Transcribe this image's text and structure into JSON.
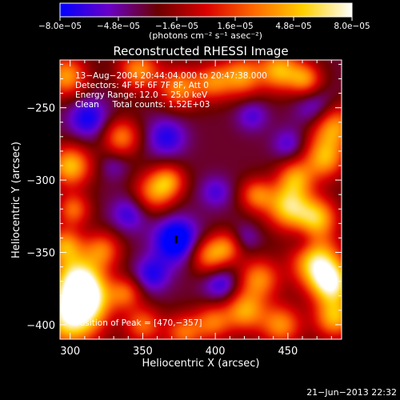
{
  "chart_data": {
    "type": "heatmap",
    "title": "Reconstructed RHESSI Image",
    "xlabel": "Heliocentric X (arcsec)",
    "ylabel": "Heliocentric Y (arcsec)",
    "xlim": [
      293,
      487
    ],
    "ylim": [
      -410,
      -217
    ],
    "x_ticks": [
      300,
      350,
      400,
      450
    ],
    "y_ticks": [
      -250,
      -300,
      -350,
      -400
    ],
    "x_tick_labels": [
      "300",
      "350",
      "400",
      "450"
    ],
    "y_tick_labels": [
      "−250",
      "−300",
      "−350",
      "−400"
    ],
    "colorbar": {
      "range": [
        -8e-05,
        8e-05
      ],
      "ticks": [
        -8e-05,
        -4.8e-05,
        -1.6e-05,
        1.6e-05,
        4.8e-05,
        8e-05
      ],
      "tick_labels": [
        "−8.0e−05",
        "−4.8e−05",
        "−1.6e−05",
        "1.6e−05",
        "4.8e−05",
        "8.0e−05"
      ],
      "units_label": "(photons cm⁻² s⁻¹ asec⁻²)",
      "colors": [
        "#0000ff",
        "#6a00c8",
        "#6b0000",
        "#d90000",
        "#ff6a00",
        "#ffd000",
        "#ffffff"
      ]
    },
    "info_lines": [
      "13−Aug−2004 20:44:04.000 to 20:47:38.000",
      "Detectors: 4F 5F 6F 7F 8F, Att 0",
      "Energy Range: 12.0 − 25.0 keV",
      "Clean     Total counts: 1.52E+03"
    ],
    "peak_label": "Position of Peak = [470,−357]",
    "peak": {
      "x": 470,
      "y": -357
    },
    "marker": {
      "x": 373,
      "y": -341
    },
    "timestamp": "21−Jun−2013 22:32",
    "blobs": [
      {
        "x": 300,
        "y": -395,
        "r": 14,
        "v": 8e-05
      },
      {
        "x": 305,
        "y": -368,
        "r": 12,
        "v": 7.2e-05
      },
      {
        "x": 312,
        "y": -382,
        "r": 12,
        "v": 6e-05
      },
      {
        "x": 296,
        "y": -345,
        "r": 9,
        "v": 5e-05
      },
      {
        "x": 302,
        "y": -320,
        "r": 8,
        "v": 4e-05
      },
      {
        "x": 300,
        "y": -290,
        "r": 10,
        "v": 6.5e-05
      },
      {
        "x": 297,
        "y": -228,
        "r": 10,
        "v": 5.5e-05
      },
      {
        "x": 335,
        "y": -270,
        "r": 9,
        "v": 4.5e-05
      },
      {
        "x": 347,
        "y": -224,
        "r": 10,
        "v": 5e-05
      },
      {
        "x": 375,
        "y": -236,
        "r": 10,
        "v": 4.8e-05
      },
      {
        "x": 398,
        "y": -232,
        "r": 9,
        "v": 4e-05
      },
      {
        "x": 418,
        "y": -228,
        "r": 10,
        "v": 5.2e-05
      },
      {
        "x": 444,
        "y": -224,
        "r": 10,
        "v": 6e-05
      },
      {
        "x": 462,
        "y": -230,
        "r": 8,
        "v": 4.5e-05
      },
      {
        "x": 480,
        "y": -262,
        "r": 11,
        "v": 6.5e-05
      },
      {
        "x": 475,
        "y": -285,
        "r": 10,
        "v": 5.5e-05
      },
      {
        "x": 455,
        "y": -298,
        "r": 9,
        "v": 4.5e-05
      },
      {
        "x": 428,
        "y": -310,
        "r": 8,
        "v": 4e-05
      },
      {
        "x": 450,
        "y": -318,
        "r": 11,
        "v": 7e-05
      },
      {
        "x": 470,
        "y": -326,
        "r": 10,
        "v": 6e-05
      },
      {
        "x": 358,
        "y": -308,
        "r": 10,
        "v": 4.5e-05
      },
      {
        "x": 368,
        "y": -300,
        "r": 8,
        "v": 3.5e-05
      },
      {
        "x": 322,
        "y": -348,
        "r": 9,
        "v": 4e-05
      },
      {
        "x": 395,
        "y": -352,
        "r": 9,
        "v": 4.5e-05
      },
      {
        "x": 408,
        "y": -346,
        "r": 8,
        "v": 3.5e-05
      },
      {
        "x": 470,
        "y": -357,
        "r": 12,
        "v": 8e-05
      },
      {
        "x": 480,
        "y": -372,
        "r": 10,
        "v": 7e-05
      },
      {
        "x": 482,
        "y": -395,
        "r": 10,
        "v": 6e-05
      },
      {
        "x": 430,
        "y": -368,
        "r": 10,
        "v": 4.8e-05
      },
      {
        "x": 420,
        "y": -390,
        "r": 10,
        "v": 5.5e-05
      },
      {
        "x": 445,
        "y": -400,
        "r": 10,
        "v": 5e-05
      },
      {
        "x": 398,
        "y": -398,
        "r": 9,
        "v": 4e-05
      },
      {
        "x": 378,
        "y": -405,
        "r": 9,
        "v": 4e-05
      },
      {
        "x": 350,
        "y": -400,
        "r": 9,
        "v": 4e-05
      },
      {
        "x": 338,
        "y": -378,
        "r": 8,
        "v": 3.5e-05
      },
      {
        "x": 373,
        "y": -341,
        "r": 11,
        "v": -8e-05
      },
      {
        "x": 312,
        "y": -257,
        "r": 10,
        "v": -6e-05
      },
      {
        "x": 366,
        "y": -270,
        "r": 10,
        "v": -5.5e-05
      },
      {
        "x": 470,
        "y": -252,
        "r": 10,
        "v": -6e-05
      },
      {
        "x": 450,
        "y": -275,
        "r": 8,
        "v": -4.5e-05
      },
      {
        "x": 425,
        "y": -255,
        "r": 8,
        "v": -4.5e-05
      },
      {
        "x": 340,
        "y": -323,
        "r": 9,
        "v": -5e-05
      },
      {
        "x": 400,
        "y": -308,
        "r": 8,
        "v": -4.5e-05
      },
      {
        "x": 356,
        "y": -365,
        "r": 9,
        "v": -5.5e-05
      },
      {
        "x": 404,
        "y": -372,
        "r": 9,
        "v": -5.5e-05
      },
      {
        "x": 420,
        "y": -340,
        "r": 7,
        "v": -4e-05
      },
      {
        "x": 460,
        "y": -342,
        "r": 7,
        "v": -3.5e-05
      },
      {
        "x": 330,
        "y": -290,
        "r": 7,
        "v": -3.5e-05
      }
    ]
  }
}
